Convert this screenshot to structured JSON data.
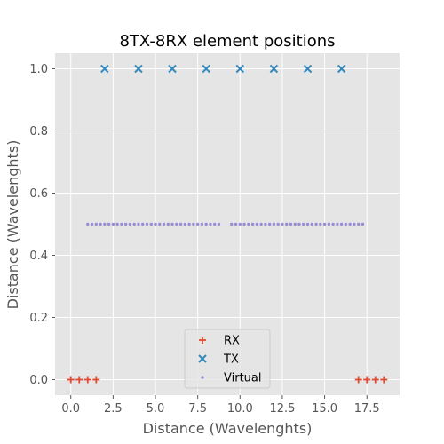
{
  "chart_data": {
    "type": "scatter",
    "title": "8TX-8RX element positions",
    "xlabel": "Distance (Wavelenghts)",
    "ylabel": "Distance (Wavelenghts)",
    "xlim": [
      -0.93,
      19.43
    ],
    "ylim": [
      -0.05,
      1.05
    ],
    "xticks": [
      "0.0",
      "2.5",
      "5.0",
      "7.5",
      "10.0",
      "12.5",
      "15.0",
      "17.5"
    ],
    "yticks": [
      "0.0",
      "0.2",
      "0.4",
      "0.6",
      "0.8",
      "1.0"
    ],
    "grid": true,
    "legend_position": "lower-center",
    "series": [
      {
        "name": "RX",
        "marker": "plus",
        "color": "#E24A33",
        "x": [
          0.0,
          0.5,
          1.0,
          1.5,
          17.0,
          17.5,
          18.0,
          18.5
        ],
        "y": [
          0,
          0,
          0,
          0,
          0,
          0,
          0,
          0
        ]
      },
      {
        "name": "TX",
        "marker": "x",
        "color": "#348ABD",
        "x": [
          2,
          4,
          6,
          8,
          10,
          12,
          14,
          16
        ],
        "y": [
          1,
          1,
          1,
          1,
          1,
          1,
          1,
          1
        ]
      },
      {
        "name": "Virtual",
        "marker": "dot",
        "color": "#988ED5",
        "x": [
          1.0,
          1.25,
          1.5,
          1.75,
          2.0,
          2.25,
          2.5,
          2.75,
          3.0,
          3.25,
          3.5,
          3.75,
          4.0,
          4.25,
          4.5,
          4.75,
          5.0,
          5.25,
          5.5,
          5.75,
          6.0,
          6.25,
          6.5,
          6.75,
          7.0,
          7.25,
          7.5,
          7.75,
          8.0,
          8.25,
          8.5,
          8.75,
          9.5,
          9.75,
          10.0,
          10.25,
          10.5,
          10.75,
          11.0,
          11.25,
          11.5,
          11.75,
          12.0,
          12.25,
          12.5,
          12.75,
          13.0,
          13.25,
          13.5,
          13.75,
          14.0,
          14.25,
          14.5,
          14.75,
          15.0,
          15.25,
          15.5,
          15.75,
          16.0,
          16.25,
          16.5,
          16.75,
          17.0,
          17.25
        ],
        "y": [
          0.5,
          0.5,
          0.5,
          0.5,
          0.5,
          0.5,
          0.5,
          0.5,
          0.5,
          0.5,
          0.5,
          0.5,
          0.5,
          0.5,
          0.5,
          0.5,
          0.5,
          0.5,
          0.5,
          0.5,
          0.5,
          0.5,
          0.5,
          0.5,
          0.5,
          0.5,
          0.5,
          0.5,
          0.5,
          0.5,
          0.5,
          0.5,
          0.5,
          0.5,
          0.5,
          0.5,
          0.5,
          0.5,
          0.5,
          0.5,
          0.5,
          0.5,
          0.5,
          0.5,
          0.5,
          0.5,
          0.5,
          0.5,
          0.5,
          0.5,
          0.5,
          0.5,
          0.5,
          0.5,
          0.5,
          0.5,
          0.5,
          0.5,
          0.5,
          0.5,
          0.5,
          0.5,
          0.5,
          0.5
        ]
      }
    ]
  },
  "style": {
    "plot_background": "#E5E5E5",
    "grid_color": "#FFFFFF",
    "legend_background": "#E5E5E5",
    "legend_border": "#CCCCCC"
  }
}
